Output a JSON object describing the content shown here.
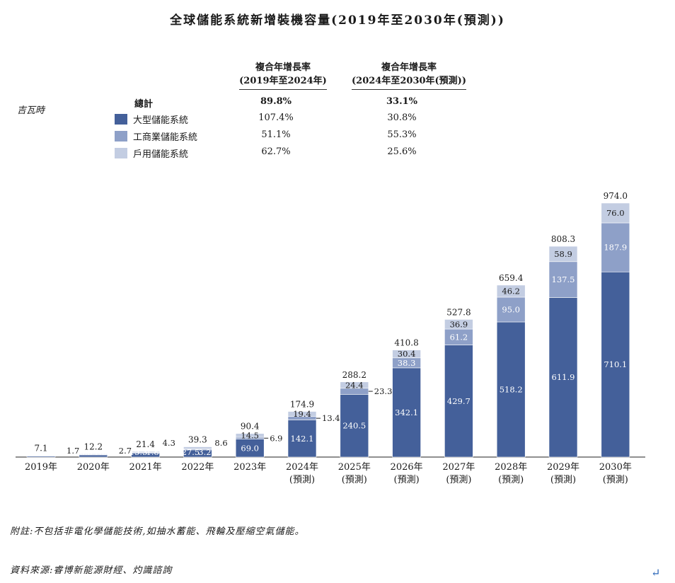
{
  "title": "全球儲能系統新增裝機容量(2019年至2030年(預測))",
  "unit_label": "吉瓦時",
  "cagr_headers": [
    {
      "line1": "複合年增長率",
      "line2": "(2019年至2024年)"
    },
    {
      "line1": "複合年增長率",
      "line2": "(2024年至2030年(預測))"
    }
  ],
  "legend": [
    {
      "label": "總計",
      "cagr1": "89.8%",
      "cagr2": "33.1%",
      "color": "",
      "bold": true
    },
    {
      "label": "大型儲能系統",
      "cagr1": "107.4%",
      "cagr2": "30.8%",
      "color": "#44609a"
    },
    {
      "label": "工商業儲能系統",
      "cagr1": "51.1%",
      "cagr2": "55.3%",
      "color": "#8ea0c8"
    },
    {
      "label": "戶用儲能系統",
      "cagr1": "62.7%",
      "cagr2": "25.6%",
      "color": "#c3cde2"
    }
  ],
  "chart_data": {
    "type": "bar",
    "stacked": true,
    "categories": [
      [
        "2019年"
      ],
      [
        "2020年"
      ],
      [
        "2021年"
      ],
      [
        "2022年"
      ],
      [
        "2023年"
      ],
      [
        "2024年",
        "(預測)"
      ],
      [
        "2025年",
        "(預測)"
      ],
      [
        "2026年",
        "(預測)"
      ],
      [
        "2027年",
        "(預測)"
      ],
      [
        "2028年",
        "(預測)"
      ],
      [
        "2029年",
        "(預測)"
      ],
      [
        "2030年",
        "(預測)"
      ]
    ],
    "series": [
      {
        "name": "大型儲能系統",
        "color": "#44609a",
        "values": [
          3.7,
          8.3,
          15.3,
          27.5,
          69.0,
          142.1,
          240.5,
          342.1,
          429.7,
          518.2,
          611.9,
          710.1
        ],
        "labels": [
          "3.7",
          "8.3",
          "15.3",
          "27.5",
          "69.0",
          "142.1",
          "240.5",
          "342.1",
          "429.7",
          "518.2",
          "611.9",
          "710.1"
        ]
      },
      {
        "name": "工商業儲能系統",
        "color": "#8ea0c8",
        "values": [
          1.7,
          1.2,
          1.8,
          3.2,
          6.9,
          13.4,
          23.3,
          38.3,
          61.2,
          95.0,
          137.5,
          187.9
        ],
        "labels": [
          "1.7",
          "1.2",
          "1.8",
          "3.2",
          "6.9",
          "13.4",
          "23.3",
          "38.3",
          "61.2",
          "95.0",
          "137.5",
          "187.9"
        ]
      },
      {
        "name": "戶用儲能系統",
        "color": "#c3cde2",
        "values": [
          1.7,
          2.7,
          4.3,
          8.6,
          14.5,
          19.4,
          24.4,
          30.4,
          36.9,
          46.2,
          58.9,
          76.0
        ],
        "labels": [
          "1.7",
          "2.7",
          "4.3",
          "8.6",
          "14.5",
          "19.4",
          "24.4",
          "30.4",
          "36.9",
          "46.2",
          "58.9",
          "76.0"
        ]
      }
    ],
    "totals": [
      "7.1",
      "12.2",
      "21.4",
      "39.3",
      "90.4",
      "174.9",
      "288.2",
      "410.8",
      "527.8",
      "659.4",
      "808.3",
      "974.0"
    ],
    "ylim": [
      0,
      974
    ]
  },
  "footnote": "附註:不包括非電化學儲能技術,如抽水蓄能、飛輪及壓縮空氣儲能。",
  "source": "資料來源:睿博新能源財經、灼識諮詢"
}
